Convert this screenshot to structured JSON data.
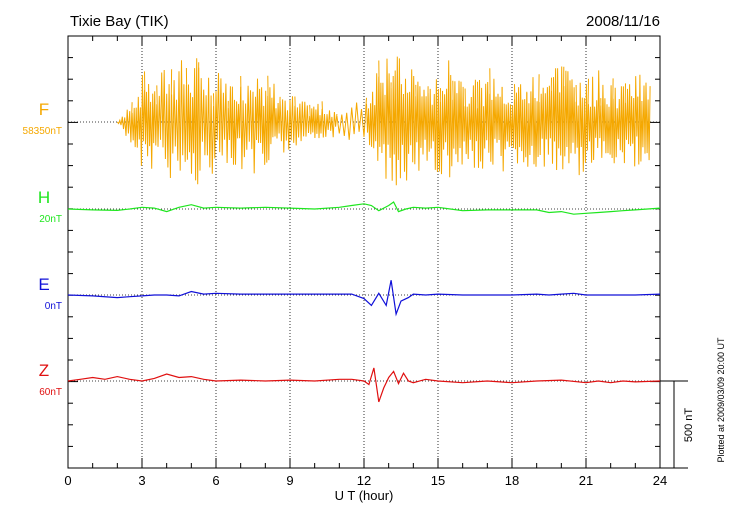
{
  "header": {
    "station": "Tixie Bay (TIK)",
    "date": "2008/11/16"
  },
  "footer": {
    "plotted_note": "Plotted at 2009/03/09 20:00 UT",
    "scale_label": "500 nT"
  },
  "colors": {
    "F": "#f5a800",
    "H": "#1ee61e",
    "E": "#1010d8",
    "Z": "#e01010",
    "axis": "#000000",
    "grid": "#000000"
  },
  "chart_data": {
    "type": "line",
    "title": "Tixie Bay (TIK)",
    "xlabel": "U T (hour)",
    "ylabel": "",
    "xlim": [
      0,
      24
    ],
    "x_ticks": [
      "0",
      "3",
      "6",
      "9",
      "12",
      "15",
      "18",
      "21",
      "24"
    ],
    "scale_bar_nT": 500,
    "series": [
      {
        "name": "F",
        "baseline_label": "58350nT",
        "style": "noisy-spikes",
        "x": [
          2.0,
          2.6,
          3.1,
          3.6,
          4.2,
          4.8,
          5.3,
          5.9,
          6.5,
          7.0,
          7.6,
          8.1,
          8.6,
          9.2,
          9.8,
          10.3,
          10.9,
          12.1,
          12.6,
          13.1,
          13.6,
          14.1,
          14.6,
          15.1,
          15.6,
          16.1,
          16.6,
          17.1,
          17.6,
          18.1,
          18.6,
          19.1,
          19.6,
          20.1,
          20.6,
          21.1,
          21.6,
          22.1,
          22.6,
          23.1,
          23.6
        ],
        "values": [
          0,
          150,
          300,
          250,
          400,
          350,
          380,
          300,
          250,
          300,
          350,
          280,
          200,
          150,
          100,
          120,
          80,
          150,
          380,
          420,
          360,
          300,
          250,
          320,
          380,
          300,
          260,
          320,
          300,
          250,
          280,
          330,
          300,
          350,
          320,
          280,
          300,
          260,
          240,
          280,
          250
        ]
      },
      {
        "name": "H",
        "baseline_label": "20nT",
        "x": [
          0,
          1,
          2,
          2.5,
          3,
          3.5,
          4,
          4.5,
          5,
          5.5,
          6,
          7,
          8,
          9,
          10,
          11,
          11.5,
          12,
          12.3,
          12.6,
          13,
          13.2,
          13.4,
          13.7,
          14,
          14.5,
          15,
          15.5,
          16,
          17,
          18,
          19,
          19.5,
          20,
          20.5,
          21,
          21.5,
          22,
          22.5,
          23,
          24
        ],
        "values": [
          0,
          -5,
          -8,
          0,
          10,
          5,
          -15,
          10,
          25,
          5,
          10,
          5,
          10,
          5,
          0,
          10,
          20,
          30,
          20,
          -10,
          20,
          40,
          -15,
          0,
          10,
          5,
          10,
          0,
          -10,
          -5,
          -5,
          -5,
          -20,
          -15,
          -30,
          -25,
          -20,
          -15,
          -10,
          -5,
          5
        ]
      },
      {
        "name": "E",
        "baseline_label": "0nT",
        "x": [
          0,
          1,
          2,
          2.5,
          3,
          3.5,
          4,
          4.5,
          5,
          5.5,
          6,
          7,
          8,
          9,
          10,
          11,
          11.5,
          12,
          12.3,
          12.6,
          12.9,
          13.1,
          13.3,
          13.5,
          13.8,
          14,
          14.5,
          15,
          16,
          17,
          18,
          19,
          19.5,
          20,
          20.5,
          21,
          22,
          23,
          24
        ],
        "values": [
          0,
          -5,
          -15,
          -10,
          -5,
          0,
          0,
          -5,
          20,
          5,
          10,
          5,
          5,
          5,
          5,
          5,
          5,
          -20,
          -60,
          10,
          -60,
          85,
          -110,
          -35,
          -15,
          5,
          0,
          5,
          0,
          0,
          0,
          5,
          0,
          5,
          10,
          0,
          0,
          0,
          5
        ]
      },
      {
        "name": "Z",
        "baseline_label": "60nT",
        "x": [
          0,
          0.5,
          1,
          1.5,
          2,
          2.5,
          3,
          3.5,
          4,
          4.5,
          5,
          5.5,
          6,
          7,
          8,
          9,
          10,
          11,
          11.5,
          12,
          12.2,
          12.4,
          12.6,
          12.8,
          13,
          13.2,
          13.4,
          13.6,
          13.8,
          14,
          14.5,
          15,
          16,
          17,
          18,
          19,
          20,
          21,
          21.5,
          22,
          22.5,
          23,
          24
        ],
        "values": [
          0,
          10,
          20,
          10,
          25,
          10,
          0,
          15,
          40,
          20,
          25,
          10,
          0,
          5,
          0,
          5,
          0,
          10,
          10,
          0,
          -20,
          75,
          -120,
          -40,
          20,
          55,
          -15,
          45,
          0,
          -10,
          10,
          0,
          -10,
          0,
          -10,
          0,
          5,
          -10,
          0,
          -10,
          0,
          -5,
          0
        ]
      }
    ]
  }
}
